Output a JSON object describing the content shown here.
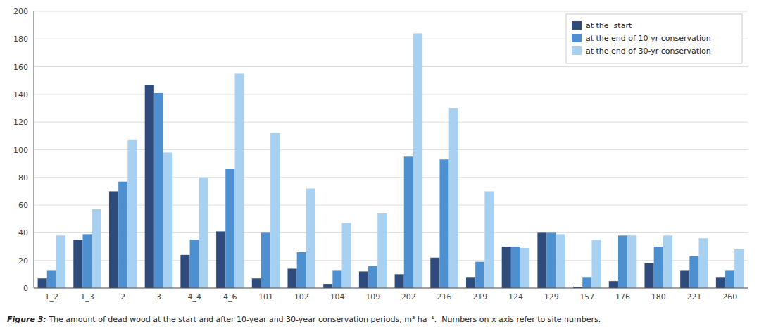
{
  "chart_data": {
    "type": "bar",
    "categories": [
      "1_2",
      "1_3",
      "2",
      "3",
      "4_4",
      "4_6",
      "101",
      "102",
      "104",
      "109",
      "202",
      "216",
      "219",
      "124",
      "129",
      "157",
      "176",
      "180",
      "221",
      "260"
    ],
    "series": [
      {
        "name": "at the  start",
        "color": "#2f4b7c",
        "values": [
          7,
          35,
          70,
          147,
          24,
          41,
          7,
          14,
          3,
          12,
          10,
          22,
          8,
          30,
          40,
          1,
          5,
          18,
          13,
          8
        ]
      },
      {
        "name": "at the end of 10-yr conservation",
        "color": "#4e8fd0",
        "values": [
          13,
          39,
          77,
          141,
          35,
          86,
          40,
          26,
          13,
          16,
          95,
          93,
          19,
          30,
          40,
          8,
          38,
          30,
          23,
          13
        ]
      },
      {
        "name": "at the end of 30-yr conservation",
        "color": "#a8d0f0",
        "values": [
          38,
          57,
          107,
          98,
          80,
          155,
          112,
          72,
          47,
          54,
          184,
          130,
          70,
          29,
          39,
          35,
          38,
          38,
          36,
          28
        ]
      }
    ],
    "ylim": [
      0,
      200
    ],
    "yticks": [
      0,
      20,
      40,
      60,
      80,
      100,
      120,
      140,
      160,
      180,
      200
    ],
    "grid": true,
    "legend": "upper right",
    "annotations": [
      "Figure 3:",
      " The amount of dead wood at the start and after 10-year and 30-year conservation periods, m³ ha⁻¹.  Numbers on x axis refer to site numbers."
    ]
  }
}
